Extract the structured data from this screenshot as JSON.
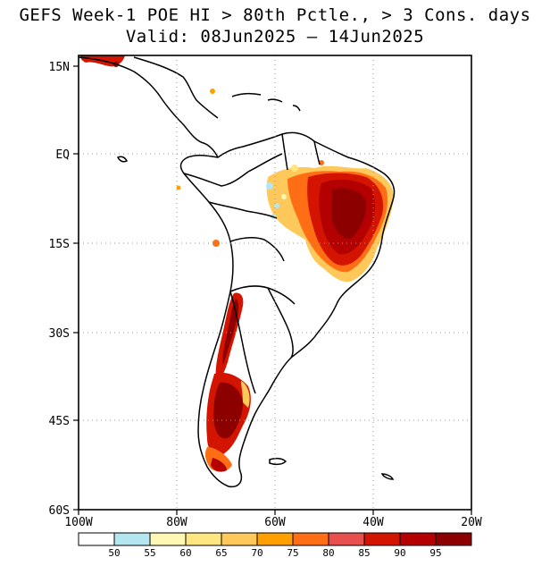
{
  "title": {
    "line1": "GEFS Week-1 POE HI > 80th Pctle., > 3 Cons. days",
    "line2": "Valid: 08Jun2025 – 14Jun2025"
  },
  "map": {
    "lat_labels": [
      "15N",
      "EQ",
      "15S",
      "30S",
      "45S",
      "60S"
    ],
    "lon_labels": [
      "100W",
      "80W",
      "60W",
      "40W",
      "20W"
    ]
  },
  "colorbar": {
    "labels": [
      "50",
      "55",
      "60",
      "65",
      "70",
      "75",
      "80",
      "85",
      "90",
      "95"
    ],
    "colors": [
      "#ffffff",
      "#b4e6f0",
      "#fff8b4",
      "#ffe680",
      "#ffc85a",
      "#ffa000",
      "#ff6e14",
      "#e85050",
      "#d21400",
      "#b40000",
      "#8c0000"
    ]
  }
}
